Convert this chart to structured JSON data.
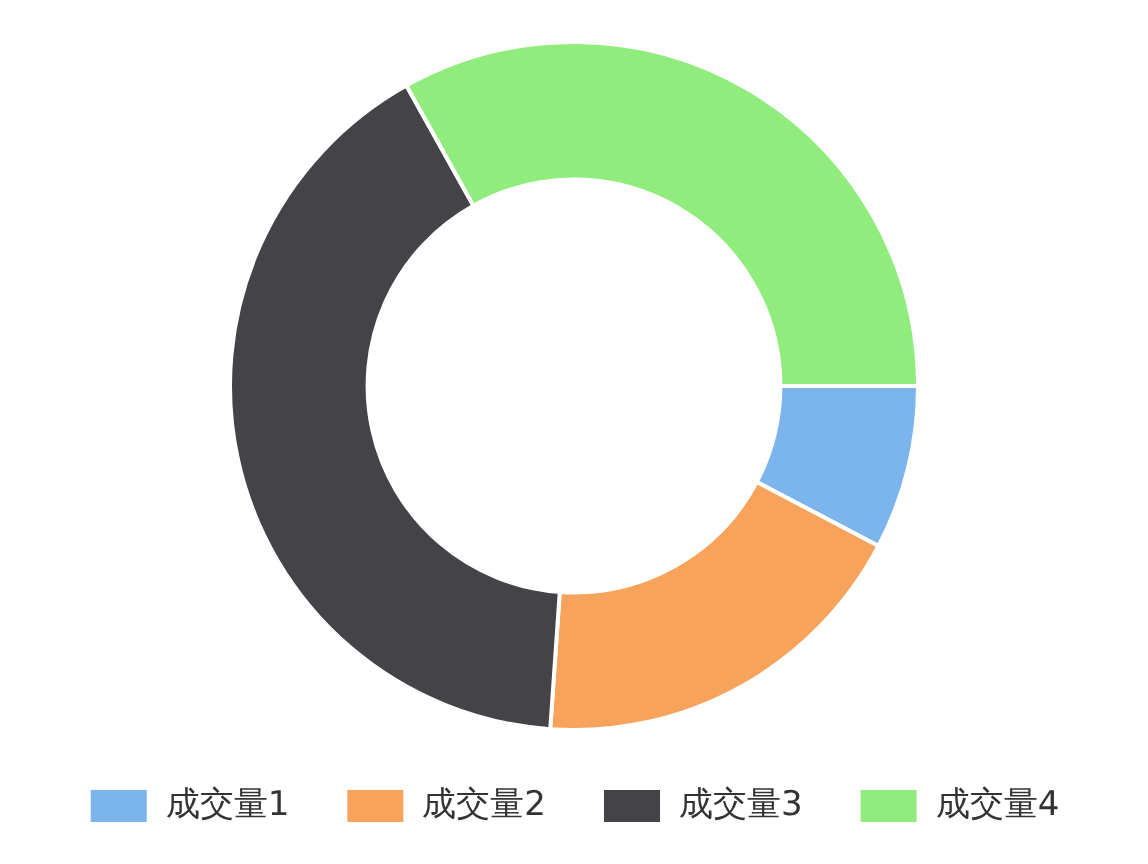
{
  "chart_data": {
    "type": "donut",
    "categories": [
      "成交量1",
      "成交量2",
      "成交量3",
      "成交量4"
    ],
    "values": [
      7.7,
      18.4,
      40.8,
      33.1
    ],
    "colors": [
      "#7cb5ec",
      "#f7a35c",
      "#434348",
      "#90ed7d"
    ],
    "legend": "bottom"
  }
}
